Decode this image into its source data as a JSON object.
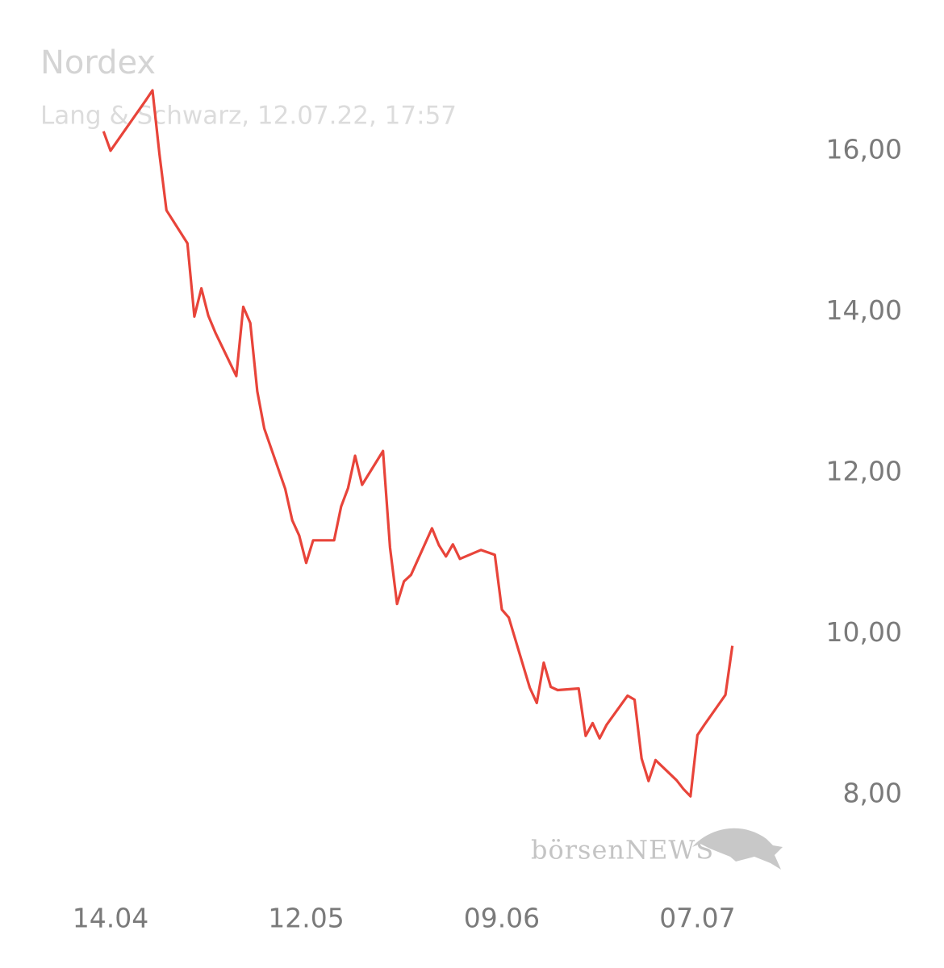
{
  "chart_data": {
    "type": "line",
    "title": "Nordex",
    "subtitle": "Lang & Schwarz, 12.07.22, 17:57",
    "watermark": "börsenNEWS",
    "color": "#e8443a",
    "x": [
      "13.04",
      "14.04",
      "19.04",
      "20.04",
      "21.04",
      "22.04",
      "25.04",
      "26.04",
      "27.04",
      "28.04",
      "29.04",
      "02.05",
      "03.05",
      "04.05",
      "05.05",
      "06.05",
      "09.05",
      "10.05",
      "11.05",
      "12.05",
      "13.05",
      "16.05",
      "17.05",
      "18.05",
      "19.05",
      "20.05",
      "23.05",
      "24.05",
      "25.05",
      "26.05",
      "27.05",
      "30.05",
      "31.05",
      "01.06",
      "02.06",
      "03.06",
      "06.06",
      "07.06",
      "08.06",
      "09.06",
      "10.06",
      "13.06",
      "14.06",
      "15.06",
      "16.06",
      "17.06",
      "20.06",
      "21.06",
      "22.06",
      "23.06",
      "24.06",
      "27.06",
      "28.06",
      "29.06",
      "30.06",
      "01.07",
      "04.07",
      "05.07",
      "06.07",
      "07.07",
      "08.07",
      "11.07",
      "12.07"
    ],
    "values": [
      16.24,
      16.0,
      16.62,
      16.75,
      15.96,
      15.26,
      14.85,
      13.94,
      14.29,
      13.95,
      13.74,
      13.2,
      14.06,
      13.86,
      13.01,
      12.55,
      11.8,
      11.41,
      11.22,
      10.88,
      11.16,
      11.16,
      11.58,
      11.81,
      12.21,
      11.85,
      12.27,
      11.07,
      10.37,
      10.65,
      10.73,
      11.31,
      11.1,
      10.96,
      11.11,
      10.93,
      11.04,
      11.01,
      10.98,
      10.3,
      10.2,
      9.33,
      9.14,
      9.64,
      9.34,
      9.3,
      9.32,
      8.73,
      8.89,
      8.7,
      8.87,
      9.23,
      9.18,
      8.45,
      8.17,
      8.43,
      8.18,
      8.07,
      7.98,
      8.74,
      8.87,
      9.24,
      9.85
    ],
    "xticks": [
      "14.04",
      "12.05",
      "09.06",
      "07.07"
    ],
    "ylim": [
      7,
      17
    ],
    "yticks": [
      {
        "value": 8,
        "label": "8,00"
      },
      {
        "value": 10,
        "label": "10,00"
      },
      {
        "value": 12,
        "label": "12,00"
      },
      {
        "value": 14,
        "label": "14,00"
      },
      {
        "value": 16,
        "label": "16,00"
      }
    ]
  }
}
